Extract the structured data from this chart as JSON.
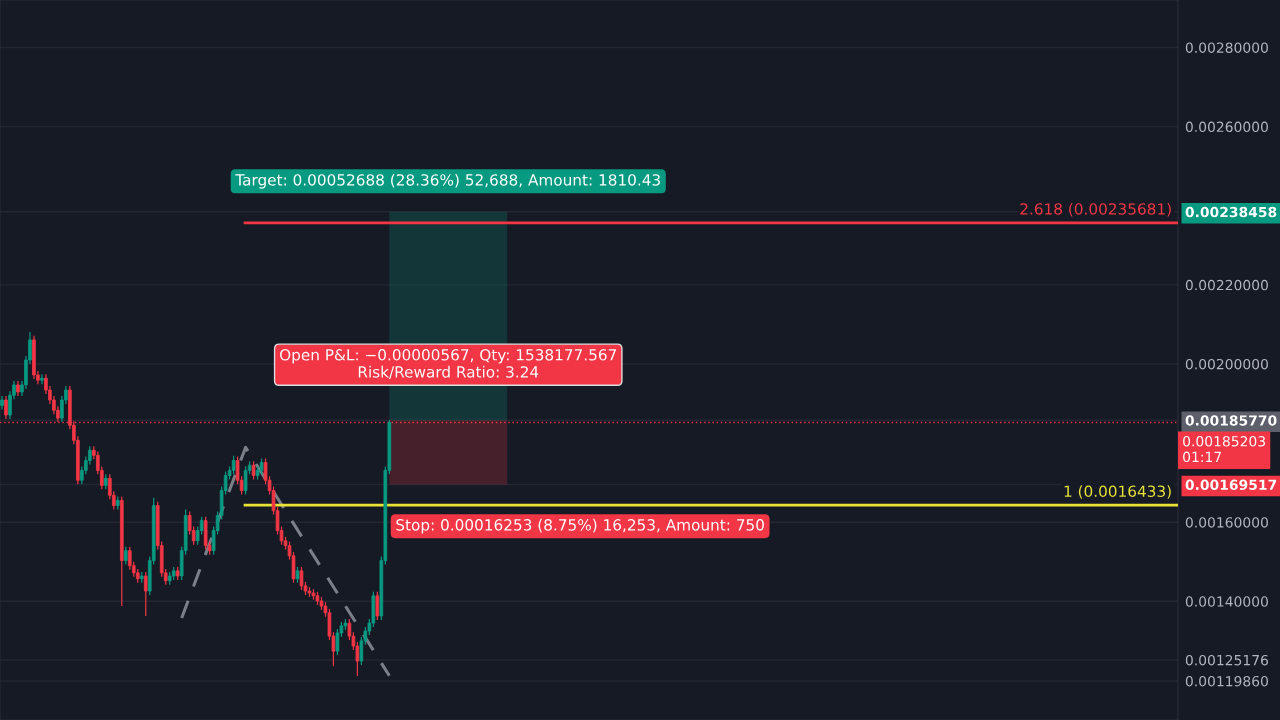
{
  "chart_data": {
    "type": "candlestick",
    "categories": [
      null,
      null,
      null,
      null,
      null,
      null,
      null,
      null,
      null,
      null,
      null,
      null,
      null,
      null,
      null,
      null,
      null,
      null,
      null,
      null,
      null,
      null,
      null,
      null,
      null,
      null,
      null,
      null,
      null,
      null,
      null,
      null,
      null,
      null,
      null,
      null,
      null,
      null,
      null,
      null,
      null,
      null,
      null,
      null,
      null,
      null,
      null,
      null,
      null,
      null,
      null,
      null,
      null,
      null,
      null,
      null,
      null,
      null,
      null,
      null,
      null,
      null,
      null,
      null,
      null,
      null,
      null,
      null,
      null,
      null,
      null,
      null,
      null,
      null,
      null,
      null,
      null,
      null,
      null,
      null,
      null,
      null,
      null,
      null,
      null,
      null,
      null,
      null,
      null,
      null,
      null,
      null,
      null,
      null,
      null,
      null,
      null,
      null,
      null,
      null,
      null,
      null,
      null,
      null,
      null,
      null,
      null,
      null,
      null,
      null,
      null,
      null,
      null,
      null,
      null,
      null,
      null,
      null,
      null,
      null,
      null,
      null,
      null,
      null,
      null,
      null,
      null,
      null,
      null,
      null,
      null,
      null,
      null,
      null,
      null,
      null,
      null,
      null,
      null,
      null,
      null,
      null,
      null,
      null,
      null,
      null,
      null,
      null,
      null,
      null,
      null,
      null,
      null,
      null,
      null,
      null,
      null,
      null,
      null,
      null,
      null,
      null,
      null,
      null,
      null,
      null,
      null,
      null,
      null,
      null,
      null,
      null,
      null,
      null,
      null,
      null,
      null,
      null,
      null,
      null,
      null,
      null,
      null,
      null,
      null,
      null,
      null,
      null,
      null,
      null,
      null,
      null,
      null,
      null,
      null,
      null,
      null,
      null,
      null,
      null,
      null,
      null,
      null,
      null,
      null,
      null,
      null,
      null,
      null,
      null,
      null,
      null,
      null,
      null,
      null,
      null,
      null,
      null,
      null,
      null,
      null,
      null,
      null,
      null,
      null,
      null,
      null,
      null,
      null,
      null,
      null,
      null,
      null,
      null,
      null,
      null,
      null,
      null,
      null,
      null,
      null,
      null,
      null,
      null,
      null,
      null,
      null,
      null,
      null,
      null,
      null,
      null,
      null,
      null,
      null,
      null,
      null,
      null,
      null,
      null,
      null,
      null,
      null,
      null,
      null,
      null,
      null,
      null,
      null,
      null,
      null,
      null,
      null,
      null,
      null,
      null,
      null,
      null,
      null,
      null,
      null,
      null,
      null,
      null,
      null,
      null,
      null,
      null,
      null,
      null,
      null,
      null,
      null,
      null,
      null
    ],
    "ohlc": [
      [
        0.001895,
        0.001919,
        0.001885,
        0.001909
      ],
      [
        0.001909,
        0.001919,
        0.001861,
        0.001871
      ],
      [
        0.001871,
        0.001931,
        0.001861,
        0.001921
      ],
      [
        0.001921,
        0.001957,
        0.001911,
        0.001947
      ],
      [
        0.001947,
        0.001957,
        0.001919,
        0.001929
      ],
      [
        0.001929,
        0.001957,
        0.001919,
        0.001947
      ],
      [
        0.001947,
        0.00202,
        0.001937,
        0.00201
      ],
      [
        0.00201,
        0.002081,
        0.002,
        0.002061
      ],
      [
        0.002061,
        0.002071,
        0.001962,
        0.001972
      ],
      [
        0.001972,
        0.001982,
        0.001949,
        0.001959
      ],
      [
        0.001959,
        0.001974,
        0.001949,
        0.001964
      ],
      [
        0.001964,
        0.001974,
        0.001924,
        0.001934
      ],
      [
        0.001934,
        0.001944,
        0.001899,
        0.001909
      ],
      [
        0.001909,
        0.001919,
        0.001873,
        0.001883
      ],
      [
        0.001883,
        0.001893,
        0.001853,
        0.001863
      ],
      [
        0.001863,
        0.001919,
        0.001853,
        0.001909
      ],
      [
        0.001909,
        0.001944,
        0.001899,
        0.001934
      ],
      [
        0.001934,
        0.001944,
        0.001835,
        0.001845
      ],
      [
        0.001845,
        0.001855,
        0.001797,
        0.001807
      ],
      [
        0.001807,
        0.001817,
        0.001696,
        0.001706
      ],
      [
        0.001706,
        0.001741,
        0.001696,
        0.001731
      ],
      [
        0.001731,
        0.001766,
        0.001721,
        0.001756
      ],
      [
        0.001756,
        0.001792,
        0.001746,
        0.001782
      ],
      [
        0.001782,
        0.001792,
        0.001759,
        0.001769
      ],
      [
        0.001769,
        0.001779,
        0.001721,
        0.001731
      ],
      [
        0.001731,
        0.001741,
        0.001683,
        0.001693
      ],
      [
        0.001693,
        0.001721,
        0.001683,
        0.001711
      ],
      [
        0.001711,
        0.001721,
        0.001658,
        0.001668
      ],
      [
        0.001668,
        0.001678,
        0.001632,
        0.001642
      ],
      [
        0.001642,
        0.001665,
        0.001632,
        0.001655
      ],
      [
        0.001655,
        0.001665,
        0.001388,
        0.001503
      ],
      [
        0.001503,
        0.001538,
        0.001493,
        0.001528
      ],
      [
        0.001528,
        0.001538,
        0.00148,
        0.00149
      ],
      [
        0.00149,
        0.0015,
        0.001462,
        0.001472
      ],
      [
        0.001472,
        0.001482,
        0.001447,
        0.001457
      ],
      [
        0.001457,
        0.001474,
        0.001447,
        0.001464
      ],
      [
        0.001464,
        0.001474,
        0.001363,
        0.001426
      ],
      [
        0.001426,
        0.001513,
        0.001416,
        0.001503
      ],
      [
        0.001503,
        0.001662,
        0.001493,
        0.001642
      ],
      [
        0.001642,
        0.001652,
        0.001531,
        0.001541
      ],
      [
        0.001541,
        0.001551,
        0.001462,
        0.001472
      ],
      [
        0.001472,
        0.001482,
        0.001442,
        0.001452
      ],
      [
        0.001452,
        0.001474,
        0.001442,
        0.001464
      ],
      [
        0.001464,
        0.001487,
        0.001454,
        0.001477
      ],
      [
        0.001477,
        0.001487,
        0.001454,
        0.001464
      ],
      [
        0.001464,
        0.001538,
        0.001454,
        0.001528
      ],
      [
        0.001528,
        0.001632,
        0.001518,
        0.001617
      ],
      [
        0.001617,
        0.001627,
        0.001569,
        0.001579
      ],
      [
        0.001579,
        0.001589,
        0.001543,
        0.001553
      ],
      [
        0.001553,
        0.001589,
        0.001543,
        0.001579
      ],
      [
        0.001579,
        0.001614,
        0.001569,
        0.001604
      ],
      [
        0.001604,
        0.001614,
        0.001531,
        0.001541
      ],
      [
        0.001541,
        0.001551,
        0.001518,
        0.001528
      ],
      [
        0.001528,
        0.001589,
        0.001518,
        0.001579
      ],
      [
        0.001579,
        0.001627,
        0.001569,
        0.001617
      ],
      [
        0.001617,
        0.00169,
        0.001607,
        0.00168
      ],
      [
        0.00168,
        0.001728,
        0.00167,
        0.001718
      ],
      [
        0.001718,
        0.001741,
        0.001708,
        0.001731
      ],
      [
        0.001731,
        0.001768,
        0.001721,
        0.001756
      ],
      [
        0.001756,
        0.001766,
        0.001696,
        0.001706
      ],
      [
        0.001706,
        0.001716,
        0.00167,
        0.00168
      ],
      [
        0.00168,
        0.001741,
        0.00167,
        0.001731
      ],
      [
        0.001731,
        0.001754,
        0.001721,
        0.001744
      ],
      [
        0.001744,
        0.001754,
        0.001708,
        0.001718
      ],
      [
        0.001718,
        0.001741,
        0.001708,
        0.001731
      ],
      [
        0.001731,
        0.001761,
        0.001721,
        0.001751
      ],
      [
        0.001751,
        0.001761,
        0.001696,
        0.001706
      ],
      [
        0.001706,
        0.001716,
        0.00167,
        0.00168
      ],
      [
        0.00168,
        0.00169,
        0.001619,
        0.001629
      ],
      [
        0.001629,
        0.001639,
        0.001569,
        0.001579
      ],
      [
        0.001579,
        0.001589,
        0.001543,
        0.001553
      ],
      [
        0.001553,
        0.001563,
        0.001531,
        0.001541
      ],
      [
        0.001541,
        0.001551,
        0.001505,
        0.001515
      ],
      [
        0.001515,
        0.001525,
        0.001447,
        0.001457
      ],
      [
        0.001457,
        0.001487,
        0.001447,
        0.001477
      ],
      [
        0.001477,
        0.001487,
        0.001429,
        0.001439
      ],
      [
        0.001439,
        0.001449,
        0.001416,
        0.001426
      ],
      [
        0.001426,
        0.001436,
        0.001411,
        0.001421
      ],
      [
        0.001421,
        0.001431,
        0.001404,
        0.001414
      ],
      [
        0.001414,
        0.001424,
        0.001391,
        0.001401
      ],
      [
        0.001401,
        0.001411,
        0.001378,
        0.001388
      ],
      [
        0.001388,
        0.001398,
        0.001361,
        0.001371
      ],
      [
        0.001371,
        0.001381,
        0.001302,
        0.001312
      ],
      [
        0.001312,
        0.001322,
        0.001236,
        0.001274
      ],
      [
        0.001274,
        0.00133,
        0.001264,
        0.00132
      ],
      [
        0.00132,
        0.001348,
        0.00131,
        0.001338
      ],
      [
        0.001338,
        0.001355,
        0.001328,
        0.001345
      ],
      [
        0.001345,
        0.001355,
        0.001302,
        0.001312
      ],
      [
        0.001312,
        0.001322,
        0.001277,
        0.001287
      ],
      [
        0.001287,
        0.001297,
        0.001211,
        0.001249
      ],
      [
        0.001249,
        0.00131,
        0.001239,
        0.0013
      ],
      [
        0.0013,
        0.001335,
        0.00129,
        0.001325
      ],
      [
        0.001325,
        0.001355,
        0.001315,
        0.001345
      ],
      [
        0.001345,
        0.001424,
        0.001335,
        0.001414
      ],
      [
        0.001414,
        0.001424,
        0.001353,
        0.001363
      ],
      [
        0.001363,
        0.001513,
        0.001353,
        0.001503
      ],
      [
        0.001503,
        0.001741,
        0.001493,
        0.001731
      ],
      [
        0.001731,
        0.001858,
        0.001721,
        0.001852
      ],
      null,
      null,
      null,
      null,
      null,
      null,
      null,
      null,
      null,
      null,
      null,
      null,
      null,
      null,
      null,
      null,
      null,
      null,
      null,
      null,
      null,
      null,
      null,
      null,
      null,
      null,
      null,
      null,
      null,
      null,
      null,
      null,
      null,
      null,
      null,
      null,
      null,
      null,
      null,
      null,
      null,
      null,
      null,
      null,
      null,
      null,
      null,
      null,
      null,
      null,
      null,
      null,
      null,
      null,
      null,
      null,
      null,
      null,
      null,
      null,
      null,
      null,
      null,
      null,
      null,
      null,
      null,
      null,
      null,
      null,
      null,
      null,
      null,
      null,
      null,
      null,
      null,
      null,
      null,
      null,
      null,
      null,
      null,
      null,
      null,
      null,
      null,
      null,
      null,
      null,
      null,
      null,
      null,
      null,
      null,
      null,
      null,
      null,
      null,
      null,
      null,
      null,
      null,
      null,
      null,
      null,
      null,
      null,
      null,
      null,
      null,
      null,
      null,
      null,
      null,
      null,
      null,
      null,
      null,
      null,
      null,
      null,
      null,
      null,
      null,
      null,
      null,
      null,
      null,
      null,
      null,
      null,
      null,
      null,
      null,
      null,
      null,
      null,
      null,
      null,
      null,
      null,
      null,
      null,
      null,
      null,
      null,
      null,
      null,
      null,
      null,
      null,
      null,
      null,
      null,
      null,
      null,
      null,
      null,
      null,
      null,
      null,
      null,
      null,
      null,
      null,
      null,
      null,
      null,
      null,
      null,
      null,
      null,
      null,
      null,
      null,
      null,
      null,
      null,
      null,
      null,
      null,
      null,
      null,
      null,
      null,
      null,
      null,
      null,
      null,
      null,
      null,
      null,
      null,
      null,
      null,
      null
    ],
    "series": [
      {
        "type": "line",
        "color": "#9598a1",
        "line_style": "dashed",
        "values": [
          null,
          null,
          null,
          null,
          null,
          null,
          null,
          null,
          null,
          null,
          null,
          null,
          null,
          null,
          null,
          null,
          null,
          null,
          null,
          null,
          null,
          null,
          null,
          null,
          null,
          null,
          null,
          null,
          null,
          null,
          null,
          null,
          null,
          null,
          null,
          null,
          null,
          null,
          null,
          null,
          null,
          null,
          null,
          null,
          null,
          0.001358,
          null,
          null,
          null,
          null,
          null,
          null,
          null,
          null,
          null,
          null,
          null,
          null,
          null,
          null,
          null,
          0.001789,
          null,
          null,
          null,
          null,
          null,
          null,
          null,
          null,
          null,
          null,
          null,
          null,
          null,
          null,
          null,
          null,
          null,
          null,
          null,
          null,
          null,
          null,
          null,
          null,
          null,
          null,
          null,
          null,
          null,
          null,
          null,
          null,
          null,
          null,
          null,
          0.001212,
          null,
          null,
          null,
          null,
          null,
          null,
          null,
          null,
          null,
          null,
          null,
          null,
          null,
          null,
          null,
          null,
          null,
          null,
          null,
          null,
          null,
          null,
          null,
          null,
          null,
          null,
          null,
          null,
          null,
          null,
          null,
          null,
          null,
          null,
          null,
          null,
          null,
          null,
          null,
          null,
          null,
          null,
          null,
          null,
          null,
          null,
          null,
          null,
          null,
          null,
          null,
          null,
          null,
          null,
          null,
          null,
          null,
          null,
          null,
          null,
          null,
          null,
          null,
          null,
          null,
          null,
          null,
          null,
          null,
          null,
          null,
          null,
          null,
          null,
          null,
          null,
          null,
          null,
          null,
          null,
          null,
          null,
          null,
          null,
          null,
          null,
          null,
          null,
          null,
          null,
          null,
          null,
          null,
          null,
          null,
          null,
          null,
          null,
          null,
          null,
          null,
          null,
          null,
          null,
          null,
          null,
          null,
          null,
          null,
          null,
          null,
          null,
          null,
          null,
          null,
          null,
          null,
          null,
          null,
          null,
          null,
          null,
          null,
          null,
          null,
          null,
          null,
          null,
          null,
          null,
          null,
          null,
          null,
          null,
          null,
          null,
          null,
          null,
          null,
          null,
          null,
          null,
          null,
          null,
          null,
          null,
          null,
          null,
          null,
          null,
          null,
          null,
          null,
          null,
          null,
          null,
          null,
          null,
          null,
          null,
          null,
          null,
          null,
          null,
          null,
          null,
          null,
          null,
          null,
          null,
          null,
          null,
          null,
          null,
          null,
          null,
          null,
          null,
          null,
          null,
          null,
          null,
          null,
          null,
          null,
          null,
          null,
          null,
          null,
          null,
          null,
          null,
          null,
          null,
          null,
          null,
          null
        ]
      }
    ],
    "ylim": [
      0.0011,
      0.00292
    ],
    "yticks": [
      {
        "value": 0.0011986,
        "label": "0.00119860"
      },
      {
        "value": 0.00125176,
        "label": "0.00125176"
      },
      {
        "value": 0.0014,
        "label": "0.00140000"
      },
      {
        "value": 0.0016,
        "label": "0.00160000"
      },
      {
        "value": 0.00169517,
        "label": "0.00169517"
      },
      {
        "value": 0.0018577,
        "label": "0.00185770"
      },
      {
        "value": 0.002,
        "label": "0.00200000"
      },
      {
        "value": 0.0022,
        "label": "0.00220000"
      },
      {
        "value": 0.00238458,
        "label": "0.00238458"
      },
      {
        "value": 0.0026,
        "label": "0.00260000"
      },
      {
        "value": 0.0028,
        "label": "0.00280000"
      }
    ],
    "tick_labels": "y",
    "grid": "y",
    "ref_lines": [
      {
        "axis": "y",
        "value": 0.00235681,
        "label": "2.618 (0.00235681)",
        "color": "#f23645",
        "line_style": "solid"
      },
      {
        "axis": "y",
        "value": 0.0016433,
        "label": "1 (0.0016433)",
        "color": "#e8e336",
        "line_style": "solid"
      },
      {
        "axis": "y",
        "value": 0.00185203,
        "label": "0.00185203\n01:17",
        "color": "#f23645",
        "line_style": "dotted"
      }
    ],
    "bands": [
      {
        "axis": "y",
        "from": 0.0018577,
        "to": 0.00238458,
        "color": "#089981"
      },
      {
        "axis": "y",
        "from": 0.00169517,
        "to": 0.0018577,
        "color": "#f23645"
      }
    ],
    "annotations": [
      "Target: 0.00052688 (28.36%) 52,688, Amount: 1810.43",
      "Open P&L: −0.00000567, Qty: 1538177.567\nRisk/Reward Ratio: 3.24",
      "Stop: 0.00016253 (8.75%) 16,253, Amount: 750"
    ]
  }
}
